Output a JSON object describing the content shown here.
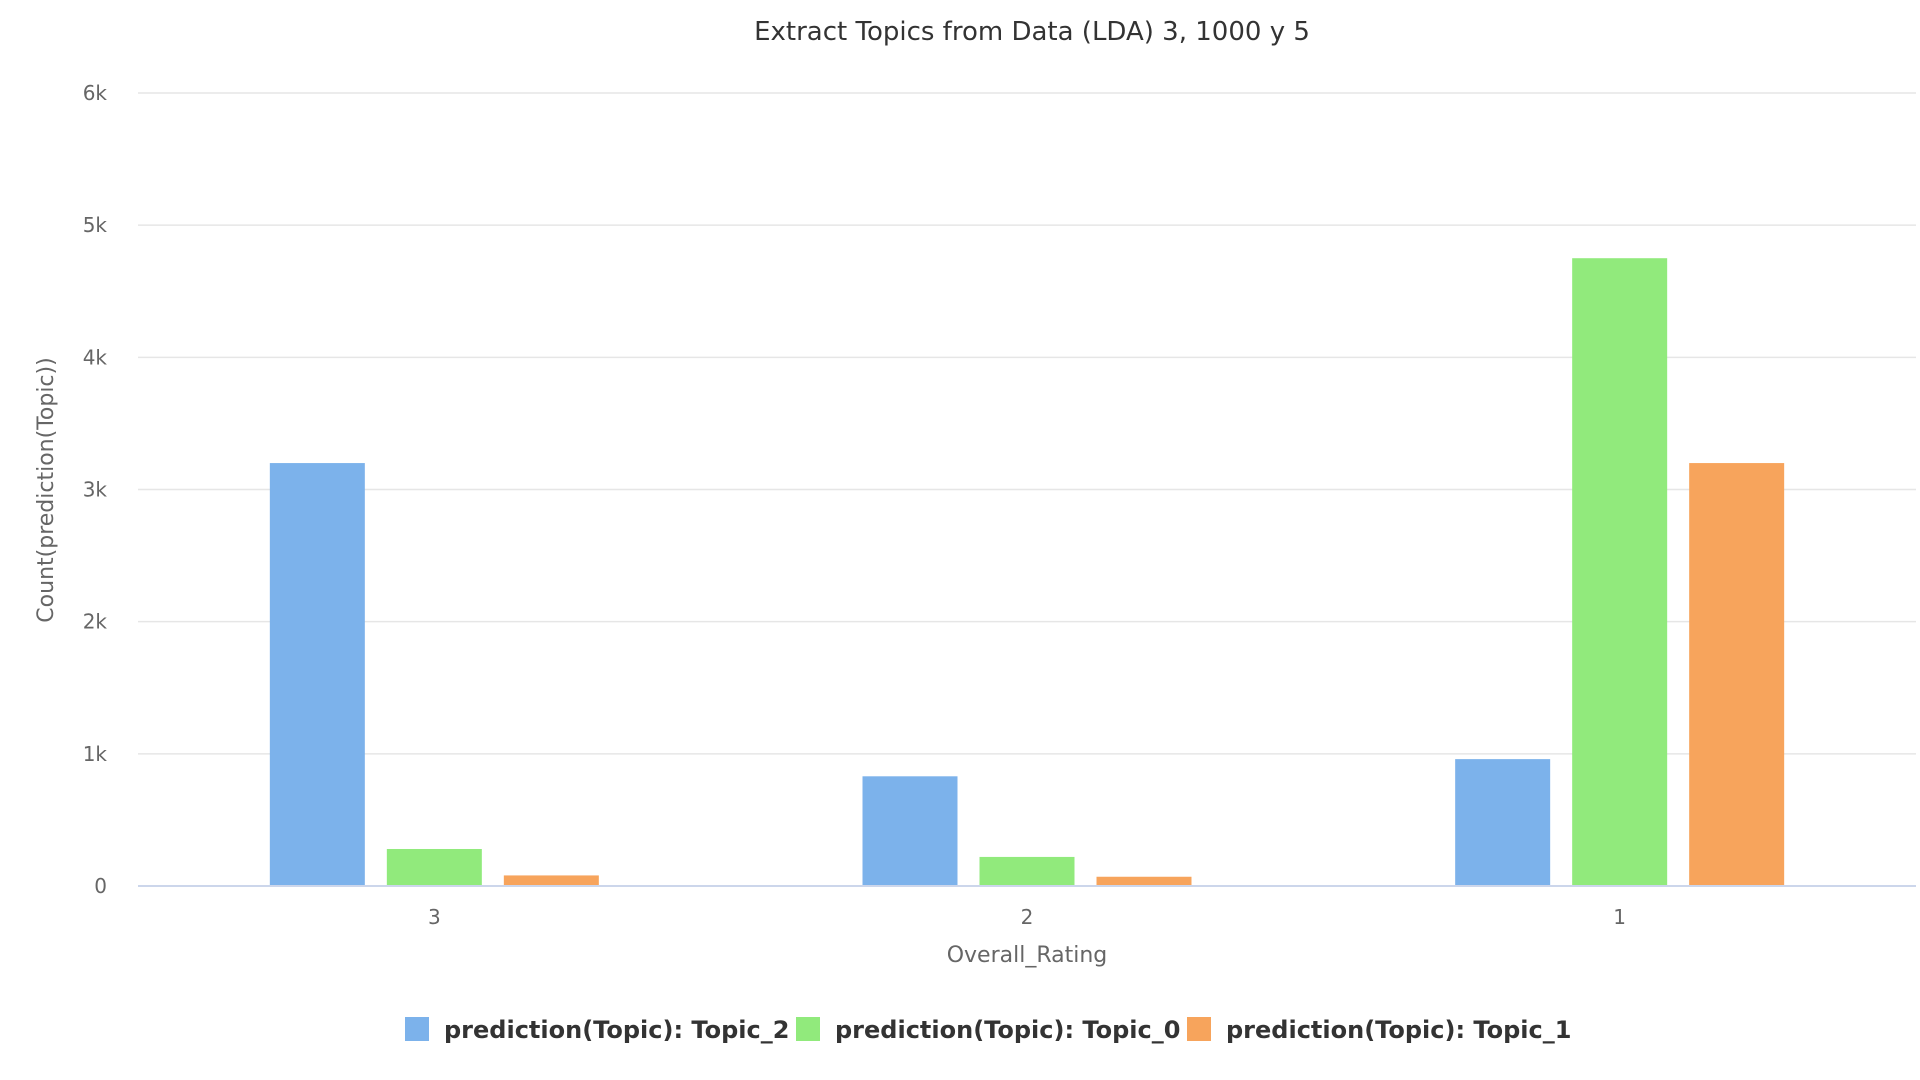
{
  "chart_data": {
    "type": "bar",
    "title": "Extract Topics from Data (LDA) 3, 1000 y 5",
    "xlabel": "Overall_Rating",
    "ylabel": "Count(prediction(Topic))",
    "categories": [
      "3",
      "2",
      "1"
    ],
    "ylim": [
      0,
      6000
    ],
    "yticks": [
      0,
      1000,
      2000,
      3000,
      4000,
      5000,
      6000
    ],
    "ytick_labels": [
      "0",
      "1k",
      "2k",
      "3k",
      "4k",
      "5k",
      "6k"
    ],
    "grid": true,
    "legend_position": "bottom",
    "series": [
      {
        "name": "prediction(Topic): Topic_2",
        "color": "#7cb2eb",
        "values": [
          3200,
          830,
          960
        ]
      },
      {
        "name": "prediction(Topic): Topic_0",
        "color": "#91ea7c",
        "values": [
          280,
          220,
          4750
        ]
      },
      {
        "name": "prediction(Topic): Topic_1",
        "color": "#f7a45c",
        "values": [
          80,
          70,
          3200
        ]
      }
    ]
  }
}
